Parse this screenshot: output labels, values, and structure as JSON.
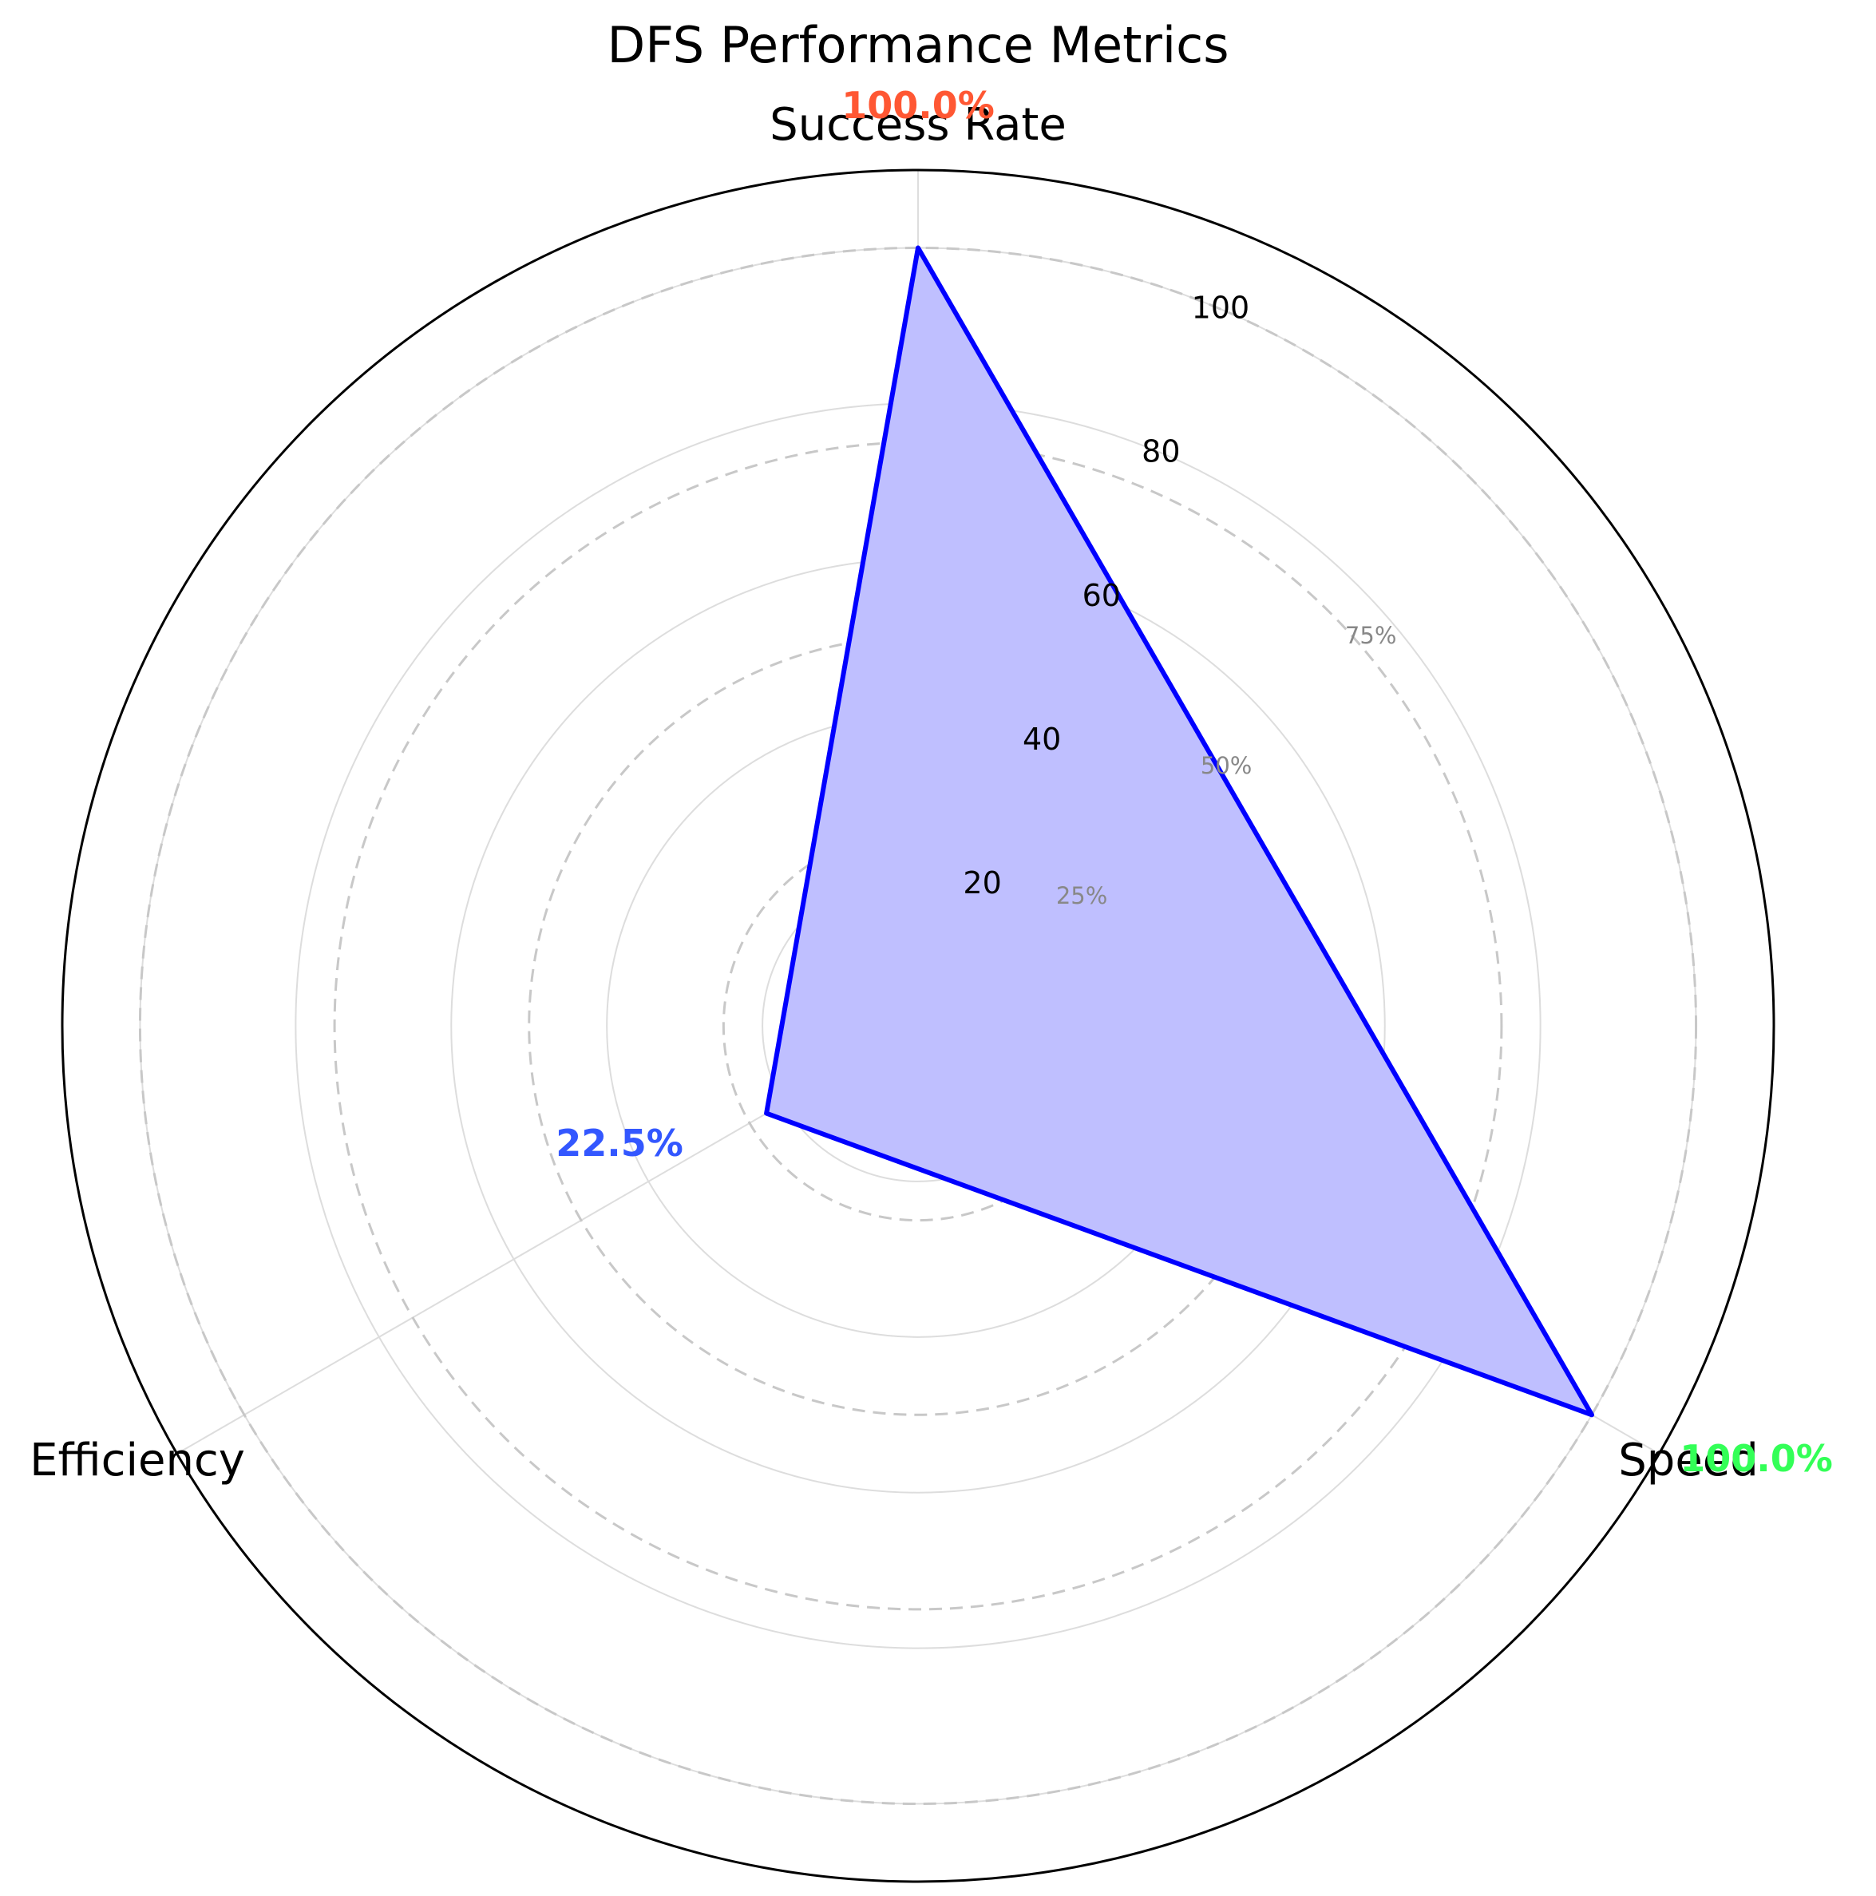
{
  "chart_data": {
    "type": "radar",
    "title": "DFS Performance Metrics",
    "categories": [
      "Success Rate",
      "Speed",
      "Efficiency"
    ],
    "values": [
      100.0,
      100.0,
      22.5
    ],
    "value_labels": [
      "100.0%",
      "100.0%",
      "22.5%"
    ],
    "value_label_colors": [
      "#ff5733",
      "#33ff57",
      "#3357ff"
    ],
    "series_color": "#0000ff",
    "fill_color": "#bfbfff",
    "rlim": [
      0,
      110
    ],
    "radial_ticks": [
      20,
      40,
      60,
      80,
      100
    ],
    "radial_tick_labels": [
      "20",
      "40",
      "60",
      "80",
      "100"
    ],
    "reference_rings": [
      25,
      50,
      75,
      100
    ],
    "reference_ring_labels": [
      "25%",
      "50%",
      "75%"
    ],
    "grid": true
  }
}
